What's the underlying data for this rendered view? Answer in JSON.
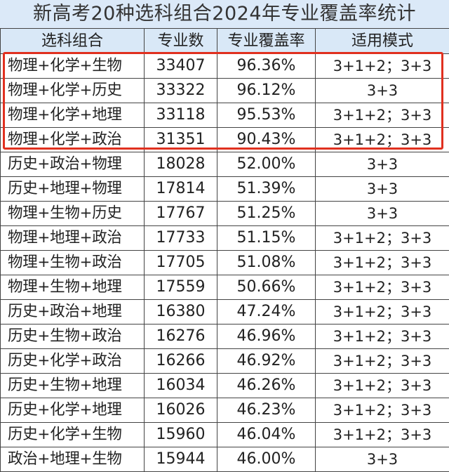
{
  "title": "新高考20种选科组合2024年专业覆盖率统计",
  "headers": [
    "选科组合",
    "专业数",
    "专业覆盖率",
    "适用模式"
  ],
  "rows": [
    {
      "combo": "物理+化学+生物",
      "count": "33407",
      "rate": "96.36%",
      "mode": "3+1+2；3+3"
    },
    {
      "combo": "物理+化学+历史",
      "count": "33322",
      "rate": "96.12%",
      "mode": "3+3"
    },
    {
      "combo": "物理+化学+地理",
      "count": "33118",
      "rate": "95.53%",
      "mode": "3+1+2；3+3"
    },
    {
      "combo": "物理+化学+政治",
      "count": "31351",
      "rate": "90.43%",
      "mode": "3+1+2；3+3"
    },
    {
      "combo": "历史+政治+物理",
      "count": "18028",
      "rate": "52.00%",
      "mode": "3+3"
    },
    {
      "combo": "历史+地理+物理",
      "count": "17814",
      "rate": "51.39%",
      "mode": "3+3"
    },
    {
      "combo": "物理+生物+历史",
      "count": "17767",
      "rate": "51.25%",
      "mode": "3+3"
    },
    {
      "combo": "物理+地理+政治",
      "count": "17733",
      "rate": "51.15%",
      "mode": "3+1+2；3+3"
    },
    {
      "combo": "物理+生物+政治",
      "count": "17705",
      "rate": "51.08%",
      "mode": "3+1+2；3+3"
    },
    {
      "combo": "物理+生物+地理",
      "count": "17559",
      "rate": "50.66%",
      "mode": "3+1+2；3+3"
    },
    {
      "combo": "历史+政治+地理",
      "count": "16380",
      "rate": "47.24%",
      "mode": "3+1+2；3+3"
    },
    {
      "combo": "历史+生物+政治",
      "count": "16276",
      "rate": "46.96%",
      "mode": "3+1+2；3+3"
    },
    {
      "combo": "历史+化学+政治",
      "count": "16266",
      "rate": "46.92%",
      "mode": "3+1+2；3+3"
    },
    {
      "combo": "历史+生物+地理",
      "count": "16034",
      "rate": "46.26%",
      "mode": "3+1+2；3+3"
    },
    {
      "combo": "历史+化学+地理",
      "count": "16026",
      "rate": "46.23%",
      "mode": "3+1+2；3+3"
    },
    {
      "combo": "历史+化学+生物",
      "count": "15960",
      "rate": "46.04%",
      "mode": "3+1+2；3+3"
    },
    {
      "combo": "政治+地理+生物",
      "count": "15944",
      "rate": "46.00%",
      "mode": "3+3"
    }
  ],
  "colors": {
    "header_bg": "#d9e8f7",
    "highlight": "#e0301f"
  }
}
